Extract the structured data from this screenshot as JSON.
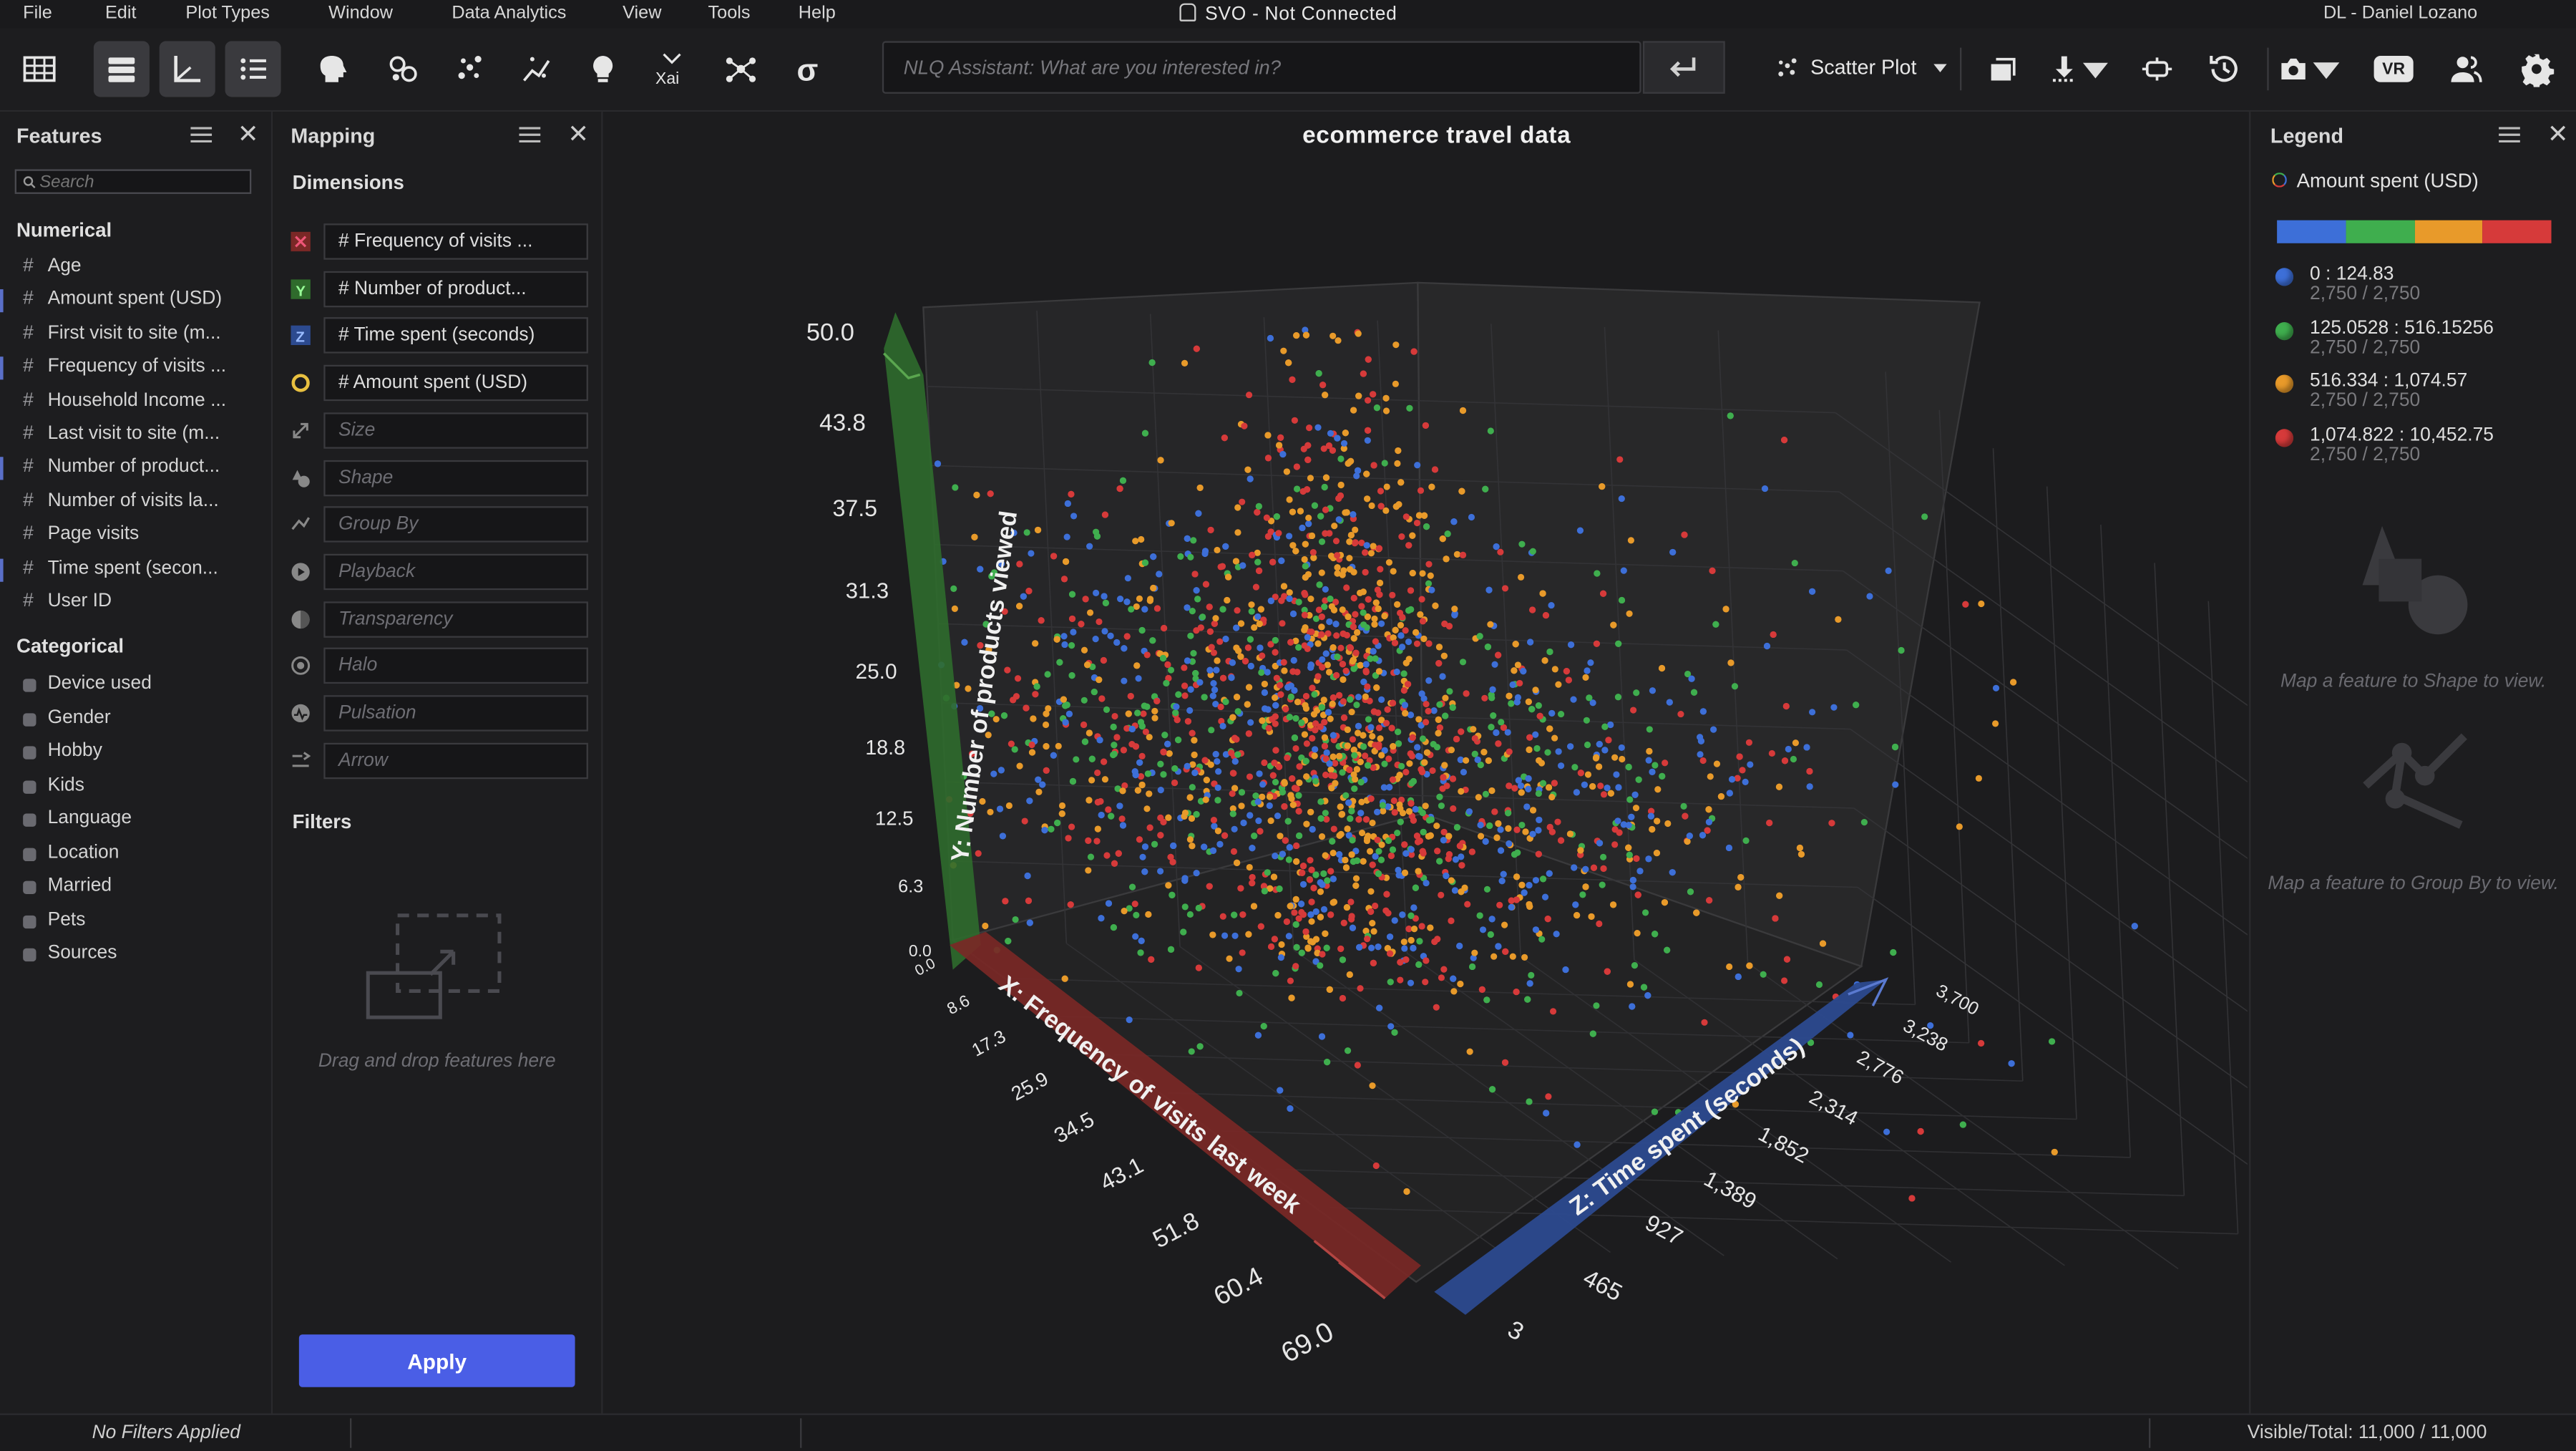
{
  "menu": [
    "File",
    "Edit",
    "Plot Types",
    "Window",
    "Data Analytics",
    "View",
    "Tools",
    "Help"
  ],
  "window_title": "SVO - Not Connected",
  "user": "DL - Daniel Lozano",
  "toolbar": {
    "nlq_placeholder": "NLQ Assistant: What are you interested in?",
    "plot_type": "Scatter Plot",
    "vr_label": "VR"
  },
  "features_panel": {
    "title": "Features",
    "search_placeholder": "Search",
    "numerical_label": "Numerical",
    "numerical": [
      "Age",
      "Amount spent (USD)",
      "First visit to site (m...",
      "Frequency of visits ...",
      "Household Income ...",
      "Last visit to site (m...",
      "Number of product...",
      "Number of visits la...",
      "Page visits",
      "Time spent (secon...",
      "User ID"
    ],
    "categorical_label": "Categorical",
    "categorical": [
      "Device used",
      "Gender",
      "Hobby",
      "Kids",
      "Language",
      "Location",
      "Married",
      "Pets",
      "Sources"
    ]
  },
  "mapping_panel": {
    "title": "Mapping",
    "dimensions_label": "Dimensions",
    "mapped": [
      "# Frequency of visits ...",
      "# Number of product...",
      "# Time spent (seconds)",
      "# Amount spent (USD)"
    ],
    "placeholders": [
      "Size",
      "Shape",
      "Group By",
      "Playback",
      "Transparency",
      "Halo",
      "Pulsation",
      "Arrow"
    ],
    "filters_label": "Filters",
    "filters_hint": "Drag and drop features here",
    "apply_label": "Apply"
  },
  "legend_panel": {
    "title": "Legend",
    "feature": "Amount spent (USD)",
    "ranges": [
      {
        "range": "0 : 124.83",
        "count": "2,750 / 2,750",
        "color": "#3d6fd8"
      },
      {
        "range": "125.0528 : 516.15256",
        "count": "2,750 / 2,750",
        "color": "#3fae4e"
      },
      {
        "range": "516.334 : 1,074.57",
        "count": "2,750 / 2,750",
        "color": "#e89a2a"
      },
      {
        "range": "1,074.822 : 10,452.75",
        "count": "2,750 / 2,750",
        "color": "#d63a3a"
      }
    ],
    "shape_hint": "Map a feature to Shape to view.",
    "group_hint": "Map a feature to Group By to view."
  },
  "status": {
    "filters": "No Filters Applied",
    "visible_total": "Visible/Total: 11,000 / 11,000"
  },
  "chart_data": {
    "type": "scatter",
    "title": "ecommerce travel data",
    "xlabel": "X: Frequency of visits last week",
    "ylabel": "Y: Number of products viewed",
    "zlabel": "Z: Time spent (seconds)",
    "x_ticks": [
      "0.0",
      "8.6",
      "17.3",
      "25.9",
      "34.5",
      "43.1",
      "51.8",
      "60.4",
      "69.0"
    ],
    "y_ticks": [
      "0.0",
      "6.3",
      "12.5",
      "18.8",
      "25.0",
      "31.3",
      "37.5",
      "43.8",
      "50.0"
    ],
    "z_ticks": [
      "3",
      "465",
      "927",
      "1,389",
      "1,852",
      "2,314",
      "2,776",
      "3,238",
      "3,700"
    ],
    "xlim": [
      0,
      69.0
    ],
    "ylim": [
      0,
      50.0
    ],
    "zlim": [
      3,
      3700
    ],
    "color_by": "Amount spent (USD)",
    "points_visible": 11000,
    "points_total": 11000
  }
}
